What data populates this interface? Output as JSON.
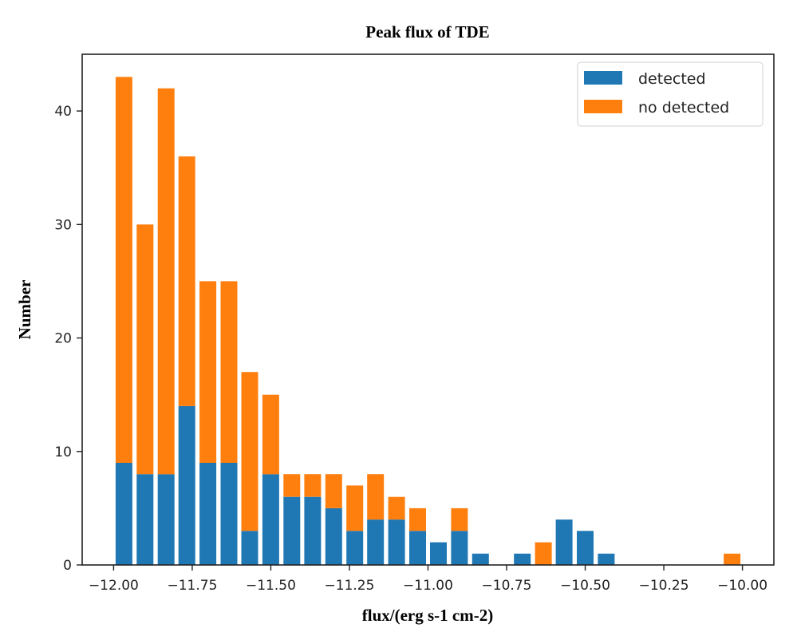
{
  "chart_data": {
    "type": "bar",
    "stacked": true,
    "title": "Peak flux of TDE",
    "xlabel": "flux/(erg s-1 cm-2)",
    "ylabel": "Number",
    "xlim": [
      -12.1,
      -9.9
    ],
    "ylim": [
      0,
      45
    ],
    "xticks": [
      -12.0,
      -11.75,
      -11.5,
      -11.25,
      -11.0,
      -10.75,
      -10.5,
      -10.25,
      -10.0
    ],
    "xtick_labels": [
      "−12.00",
      "−11.75",
      "−11.50",
      "−11.25",
      "−11.00",
      "−10.75",
      "−10.50",
      "−10.25",
      "−10.00"
    ],
    "yticks": [
      0,
      10,
      20,
      30,
      40
    ],
    "ytick_labels": [
      "0",
      "10",
      "20",
      "30",
      "40"
    ],
    "grid": false,
    "legend_position": "top-right",
    "bin_width": 0.0667,
    "x": [
      -11.967,
      -11.9,
      -11.833,
      -11.767,
      -11.7,
      -11.633,
      -11.567,
      -11.5,
      -11.433,
      -11.367,
      -11.3,
      -11.233,
      -11.167,
      -11.1,
      -11.033,
      -10.967,
      -10.9,
      -10.833,
      -10.767,
      -10.7,
      -10.633,
      -10.567,
      -10.5,
      -10.433,
      -10.367,
      -10.3,
      -10.233,
      -10.167,
      -10.1,
      -10.033
    ],
    "series": [
      {
        "name": "detected",
        "color": "#1f77b4",
        "values": [
          9,
          8,
          8,
          14,
          9,
          9,
          3,
          8,
          6,
          6,
          5,
          3,
          4,
          4,
          3,
          2,
          3,
          1,
          0,
          1,
          0,
          4,
          3,
          1,
          0,
          0,
          0,
          0,
          0,
          0
        ]
      },
      {
        "name": "no detected",
        "color": "#ff7f0e",
        "values": [
          34,
          22,
          34,
          22,
          16,
          16,
          14,
          7,
          2,
          2,
          3,
          4,
          4,
          2,
          2,
          0,
          2,
          0,
          0,
          0,
          2,
          0,
          0,
          0,
          0,
          0,
          0,
          0,
          0,
          1
        ]
      }
    ]
  }
}
